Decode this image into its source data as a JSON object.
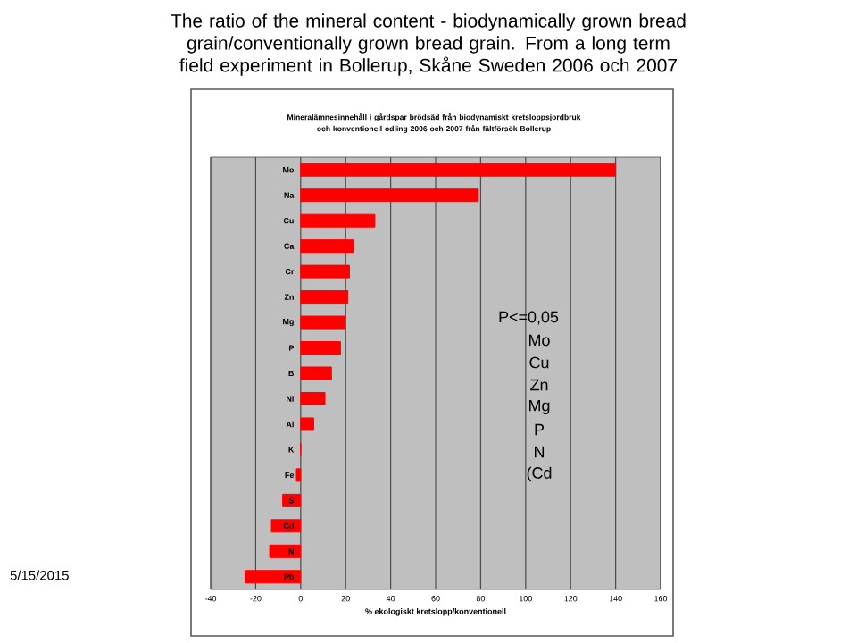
{
  "chart_data": {
    "type": "bar",
    "orientation": "horizontal",
    "title": "The ratio of the mineral content - biodynamically grown bread grain/conventionally grown bread grain. From a long term field experiment in Bollerup, Skåne Sweden  2006 och 2007",
    "subtitle": "Mineralämnesinnehåll i gårdspar brödsäd från biodynamiskt kretsloppsjordbruk och konventionell odling 2006 och 2007 från fältförsök Bollerup",
    "xlabel": "% ekologiskt kretslopp/konventionell",
    "categories": [
      "Mo",
      "Na",
      "Cu",
      "Ca",
      "Cr",
      "Zn",
      "Mg",
      "P",
      "B",
      "Ni",
      "Al",
      "K",
      "Fe",
      "S",
      "Cd",
      "N",
      "Pb"
    ],
    "values": [
      140,
      79,
      33,
      23.5,
      21.7,
      21,
      19.8,
      17.7,
      13.7,
      10.8,
      5.8,
      0,
      -1.9,
      -8,
      -13,
      -13.8,
      -24.7
    ],
    "color": "#ff0000",
    "xlim": [
      -40,
      160
    ],
    "xticks": [
      -40,
      -20,
      0,
      20,
      40,
      60,
      80,
      100,
      120,
      140,
      160
    ],
    "grid": "x",
    "annotations": [
      "P<=0,05",
      "Mo",
      "Cu",
      "Zn",
      "Mg",
      "P",
      "N",
      "(Cd",
      "5/15/2015"
    ]
  }
}
